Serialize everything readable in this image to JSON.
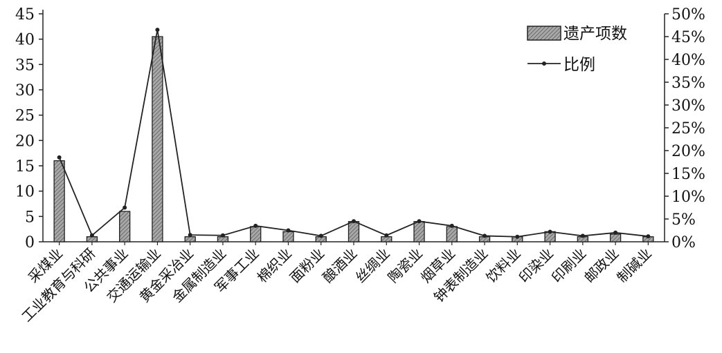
{
  "chart_data": {
    "type": "bar",
    "categories": [
      "采煤业",
      "工业教育与科研",
      "公共事业",
      "交通运输业",
      "黄金采冶业",
      "金属制造业",
      "军事工业",
      "棉织业",
      "面粉业",
      "酿酒业",
      "丝绸业",
      "陶瓷业",
      "烟草业",
      "钟表制造业",
      "饮料业",
      "印染业",
      "印刷业",
      "邮政业",
      "制碱业"
    ],
    "series": [
      {
        "name": "遗产项数",
        "type": "bar",
        "axis": "left",
        "values": [
          16,
          1,
          6,
          40.5,
          1,
          1,
          3,
          2,
          1,
          4,
          1,
          4,
          3,
          1,
          1,
          2,
          1,
          1.5,
          1
        ]
      },
      {
        "name": "比例",
        "type": "line",
        "axis": "right",
        "values": [
          0.185,
          0.014,
          0.075,
          0.465,
          0.015,
          0.014,
          0.035,
          0.025,
          0.013,
          0.045,
          0.014,
          0.045,
          0.035,
          0.013,
          0.011,
          0.022,
          0.013,
          0.02,
          0.012
        ]
      }
    ],
    "y_left": {
      "min": 0,
      "max": 45,
      "step": 5,
      "ticks": [
        "0",
        "5",
        "10",
        "15",
        "20",
        "25",
        "30",
        "35",
        "40",
        "45"
      ]
    },
    "y_right": {
      "min": 0,
      "max": 0.5,
      "step": 0.05,
      "ticks": [
        "0%",
        "5%",
        "10%",
        "15%",
        "20%",
        "25%",
        "30%",
        "35%",
        "40%",
        "45%",
        "50%"
      ]
    },
    "legend": {
      "position": "top-right",
      "items": [
        "遗产项数",
        "比例"
      ]
    },
    "grid": false,
    "colors": {
      "bar_fill": "#9a9a9a",
      "bar_stroke": "#222222",
      "line": "#222222"
    }
  }
}
